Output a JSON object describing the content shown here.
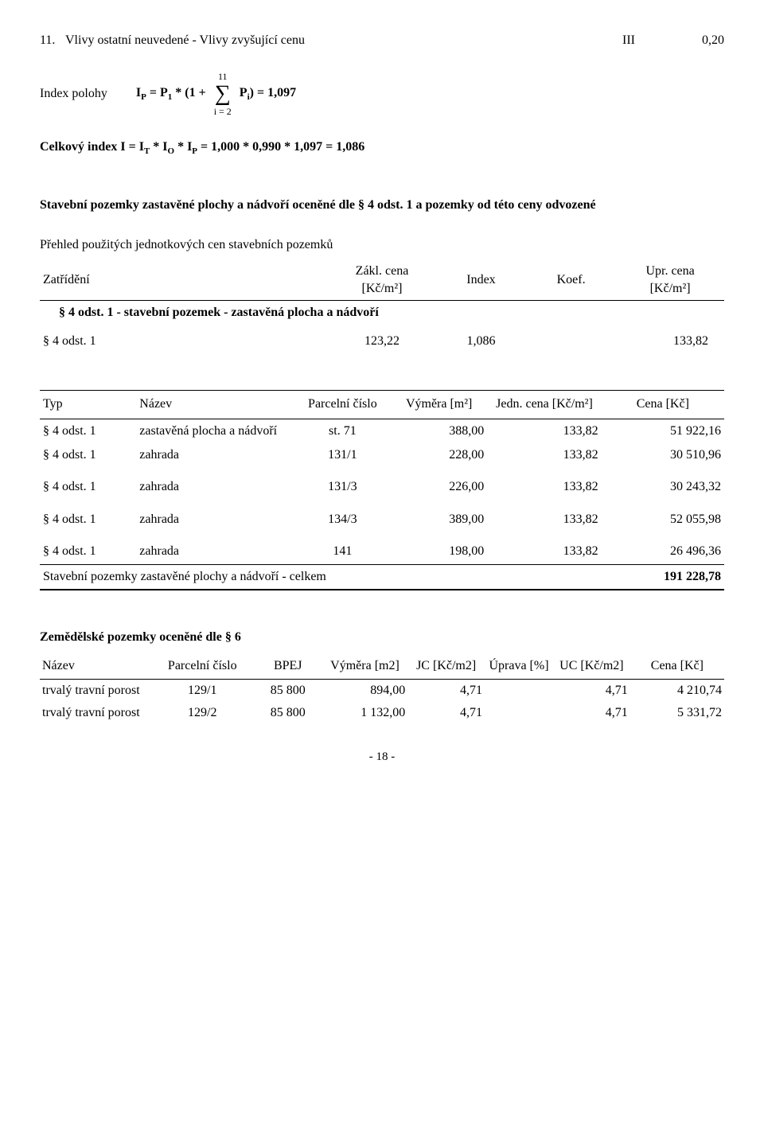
{
  "line11": {
    "num": "11.",
    "text": "Vlivy ostatní neuvedené - Vlivy zvyšující cenu",
    "cat": "III",
    "val": "0,20"
  },
  "index_poloha": {
    "label": "Index polohy",
    "lhs": "I",
    "lhs_sub": "P",
    "eq1": " = P",
    "p1_sub": "1",
    "mult": " * (1 + ",
    "sum_upper": "11",
    "sum_lower": "i = 2",
    "p_after": " P",
    "pi_sub": "i",
    "close": ") = ",
    "result": "1,097"
  },
  "celkovy": {
    "pre": "Celkový index I = I",
    "s1": "T",
    "m1": " * I",
    "s2": "O",
    "m2": " * I",
    "s3": "P",
    "eq": " = 1,000 * 0,990 * 1,097 = ",
    "result": "1,086"
  },
  "stav_heading": "Stavební pozemky zastavěné plochy a nádvoří oceněné dle § 4 odst. 1 a pozemky od této ceny odvozené",
  "prehled": "Přehled použitých jednotkových cen stavebních pozemků",
  "zatrideni": {
    "col1": "Zatřídění",
    "col2a": "Zákl. cena",
    "col2b": "[Kč/m²]",
    "col3": "Index",
    "col4": "Koef.",
    "col5a": "Upr. cena",
    "col5b": "[Kč/m²]",
    "sub_heading": "§ 4 odst. 1 - stavební pozemek - zastavěná plocha a nádvoří",
    "row_lbl": "§ 4 odst. 1",
    "row_zakl": "123,22",
    "row_idx": "1,086",
    "row_upr": "133,82"
  },
  "table2": {
    "headers": {
      "typ": "Typ",
      "nazev": "Název",
      "parc": "Parcelní číslo",
      "vym": "Výměra [m²]",
      "jedn": "Jedn. cena [Kč/m²]",
      "cena": "Cena [Kč]"
    },
    "rows": [
      {
        "typ": "§ 4 odst. 1",
        "nazev": "zastavěná plocha a nádvoří",
        "parc": "st. 71",
        "vym": "388,00",
        "jedn": "133,82",
        "cena": "51 922,16"
      },
      {
        "typ": "§ 4 odst. 1",
        "nazev": "zahrada",
        "parc": "131/1",
        "vym": "228,00",
        "jedn": "133,82",
        "cena": "30 510,96"
      },
      {
        "typ": "§ 4 odst. 1",
        "nazev": "zahrada",
        "parc": "131/3",
        "vym": "226,00",
        "jedn": "133,82",
        "cena": "30 243,32"
      },
      {
        "typ": "§ 4 odst. 1",
        "nazev": "zahrada",
        "parc": "134/3",
        "vym": "389,00",
        "jedn": "133,82",
        "cena": "52 055,98"
      },
      {
        "typ": "§ 4 odst. 1",
        "nazev": "zahrada",
        "parc": "141",
        "vym": "198,00",
        "jedn": "133,82",
        "cena": "26 496,36"
      }
    ],
    "total_label": "Stavební pozemky zastavěné plochy a nádvoří - celkem",
    "total_value": "191 228,78"
  },
  "zem_heading": "Zemědělské pozemky oceněné dle § 6",
  "table3": {
    "headers": {
      "nazev": "Název",
      "parc": "Parcelní číslo",
      "bpej": "BPEJ",
      "vym": "Výměra [m2]",
      "jc": "JC [Kč/m2]",
      "upr": "Úprava [%]",
      "uc": "UC [Kč/m2]",
      "cena": "Cena [Kč]"
    },
    "rows": [
      {
        "nazev": "trvalý travní porost",
        "parc": "129/1",
        "bpej": "85 800",
        "vym": "894,00",
        "jc": "4,71",
        "upr": "",
        "uc": "4,71",
        "cena": "4 210,74"
      },
      {
        "nazev": "trvalý travní porost",
        "parc": "129/2",
        "bpej": "85 800",
        "vym": "1 132,00",
        "jc": "4,71",
        "upr": "",
        "uc": "4,71",
        "cena": "5 331,72"
      }
    ]
  },
  "page_num": "- 18 -"
}
